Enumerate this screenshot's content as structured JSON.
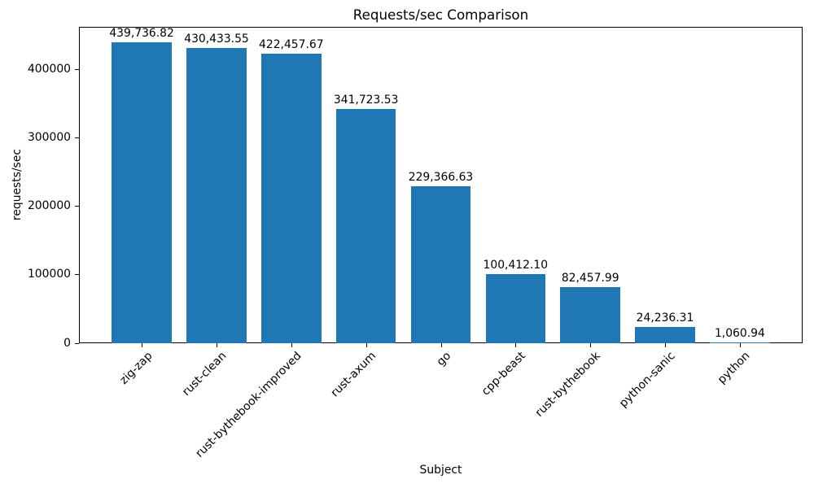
{
  "title": "Requests/sec Comparison",
  "xlabel": "Subject",
  "ylabel": "requests/sec",
  "colors": {
    "bar": "#1f77b4",
    "text": "#000000",
    "background": "#ffffff"
  },
  "chart_data": {
    "type": "bar",
    "title": "Requests/sec Comparison",
    "xlabel": "Subject",
    "ylabel": "requests/sec",
    "categories": [
      "zig-zap",
      "rust-clean",
      "rust-bythebook-improved",
      "rust-axum",
      "go",
      "cpp-beast",
      "rust-bythebook",
      "python-sanic",
      "python"
    ],
    "values": [
      439736.82,
      430433.55,
      422457.67,
      341723.53,
      229366.63,
      100412.1,
      82457.99,
      24236.31,
      1060.94
    ],
    "bar_labels": [
      "439,736.82",
      "430,433.55",
      "422,457.67",
      "341,723.53",
      "229,366.63",
      "100,412.10",
      "82,457.99",
      "24,236.31",
      "1,060.94"
    ],
    "bar_color": "#1f77b4",
    "yticks": [
      0,
      100000,
      200000,
      300000,
      400000
    ],
    "ytick_labels": [
      "0",
      "100000",
      "200000",
      "300000",
      "400000"
    ],
    "ylim": [
      0,
      461723.66
    ],
    "grid": false,
    "legend_position": "none",
    "x_tick_rotation": 45
  }
}
